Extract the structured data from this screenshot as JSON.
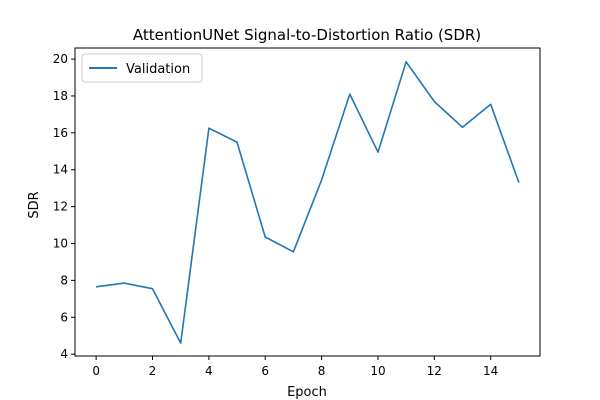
{
  "chart_data": {
    "type": "line",
    "title": "AttentionUNet Signal-to-Distortion Ratio (SDR)",
    "xlabel": "Epoch",
    "ylabel": "SDR",
    "xlim": [
      -0.75,
      15.75
    ],
    "ylim": [
      3.9,
      20.6
    ],
    "xticks": [
      0,
      2,
      4,
      6,
      8,
      10,
      12,
      14
    ],
    "yticks": [
      4,
      6,
      8,
      10,
      12,
      14,
      16,
      18,
      20
    ],
    "grid": false,
    "legend_position": "top-left",
    "series": [
      {
        "name": "Validation",
        "color": "#1f77b4",
        "x": [
          0,
          1,
          2,
          3,
          4,
          5,
          6,
          7,
          8,
          9,
          10,
          11,
          12,
          13,
          14,
          15
        ],
        "y": [
          7.65,
          7.85,
          7.55,
          4.6,
          16.25,
          15.5,
          10.35,
          9.55,
          13.45,
          18.1,
          14.95,
          19.85,
          17.7,
          16.3,
          17.55,
          13.3
        ]
      }
    ]
  }
}
